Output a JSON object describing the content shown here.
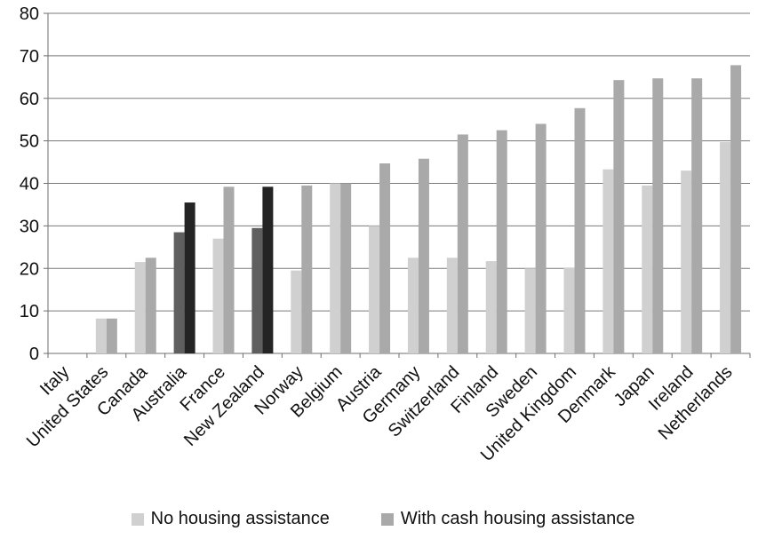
{
  "chart_data": {
    "type": "bar",
    "title": "",
    "xlabel": "",
    "ylabel": "",
    "ylim": [
      0,
      80
    ],
    "yticks": [
      0,
      10,
      20,
      30,
      40,
      50,
      60,
      70,
      80
    ],
    "grid": true,
    "legend_position": "bottom",
    "categories": [
      "Italy",
      "United States",
      "Canada",
      "Australia",
      "France",
      "New Zealand",
      "Norway",
      "Belgium",
      "Austria",
      "Germany",
      "Switzerland",
      "Finland",
      "Sweden",
      "United Kingdom",
      "Denmark",
      "Japan",
      "Ireland",
      "Netherlands"
    ],
    "series": [
      {
        "name": "No housing assistance",
        "values": [
          0,
          8.2,
          21.5,
          28.5,
          27,
          29.5,
          19.5,
          40,
          30,
          22.5,
          22.5,
          21.7,
          20,
          20.2,
          43.3,
          39.5,
          43,
          49.7
        ],
        "color": "#d0d0d0"
      },
      {
        "name": "With cash housing assistance",
        "values": [
          0,
          8.2,
          22.5,
          35.5,
          39.2,
          39.2,
          39.5,
          40,
          44.7,
          45.8,
          51.5,
          52.5,
          54,
          57.7,
          64.3,
          64.7,
          64.7,
          67.8
        ],
        "color": "#a9a9a9"
      }
    ],
    "highlight": {
      "categories": [
        "Australia",
        "New Zealand"
      ],
      "colors": [
        "#5f5f5f",
        "#242424"
      ]
    }
  }
}
